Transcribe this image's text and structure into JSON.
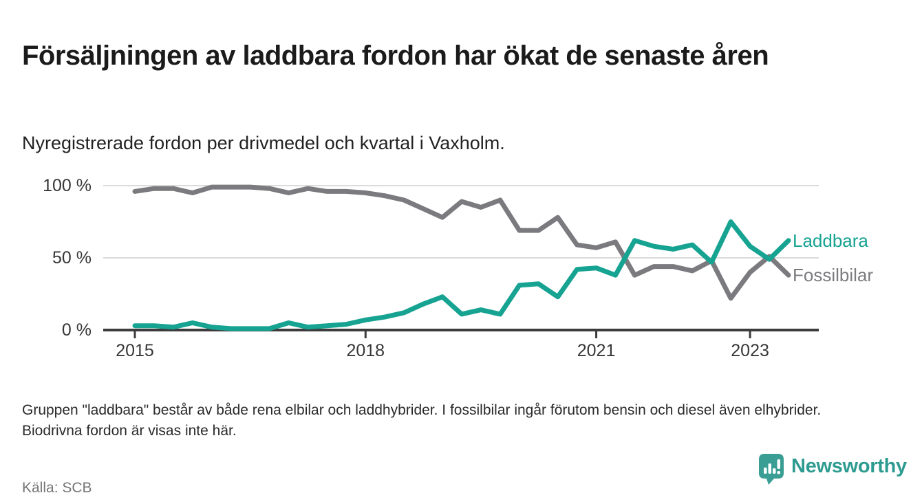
{
  "chart_data": {
    "type": "line",
    "title": "Försäljningen av laddbara fordon har ökat de senaste åren",
    "subtitle": "Nyregistrerade fordon per drivmedel och kvartal i Vaxholm.",
    "unit": "%",
    "ylim": [
      0,
      100
    ],
    "grid": "horizontal",
    "legend_position": "end-of-line-labels",
    "y_ticks": [
      {
        "label": "100 %",
        "value": 100
      },
      {
        "label": "50 %",
        "value": 50
      },
      {
        "label": "0 %",
        "value": 0
      }
    ],
    "x_ticks": [
      "2015",
      "2018",
      "2021",
      "2023"
    ],
    "categories": [
      "2015Q1",
      "2015Q2",
      "2015Q3",
      "2015Q4",
      "2016Q1",
      "2016Q2",
      "2016Q3",
      "2016Q4",
      "2017Q1",
      "2017Q2",
      "2017Q3",
      "2017Q4",
      "2018Q1",
      "2018Q2",
      "2018Q3",
      "2018Q4",
      "2019Q1",
      "2019Q2",
      "2019Q3",
      "2019Q4",
      "2020Q1",
      "2020Q2",
      "2020Q3",
      "2020Q4",
      "2021Q1",
      "2021Q2",
      "2021Q3",
      "2021Q4",
      "2022Q1",
      "2022Q2",
      "2022Q3",
      "2022Q4",
      "2023Q1",
      "2023Q2",
      "2023Q3"
    ],
    "series": [
      {
        "name": "Fossilbilar",
        "color": "#7b7b7f",
        "values": [
          96,
          98,
          98,
          95,
          99,
          99,
          99,
          98,
          95,
          98,
          96,
          96,
          95,
          93,
          90,
          84,
          78,
          89,
          85,
          90,
          69,
          69,
          78,
          59,
          57,
          61,
          38,
          44,
          44,
          41,
          48,
          22,
          40,
          51,
          38
        ]
      },
      {
        "name": "Laddbara",
        "color": "#17a392",
        "values": [
          3,
          3,
          2,
          5,
          2,
          1,
          1,
          1,
          5,
          2,
          3,
          4,
          7,
          9,
          12,
          18,
          23,
          11,
          14,
          11,
          31,
          32,
          23,
          42,
          43,
          38,
          62,
          58,
          56,
          59,
          47,
          75,
          58,
          49,
          62
        ]
      }
    ]
  },
  "footnote": "Gruppen \"laddbara\" består av både rena elbilar och laddhybrider. I fossilbilar ingår förutom bensin och diesel även elhybrider. Biodrivna fordon är visas inte här.",
  "source": "Källa: SCB",
  "branding": {
    "wordmark": "Newsworthy",
    "logo_icon": "newsworthy-pin-bar-chart-icon",
    "brand_color": "#2e9b91"
  },
  "colors": {
    "laddbara": "#17a392",
    "fossilbilar": "#7b7b7f",
    "axis": "#3c3c3c",
    "gridline": "#dbdbdb"
  }
}
